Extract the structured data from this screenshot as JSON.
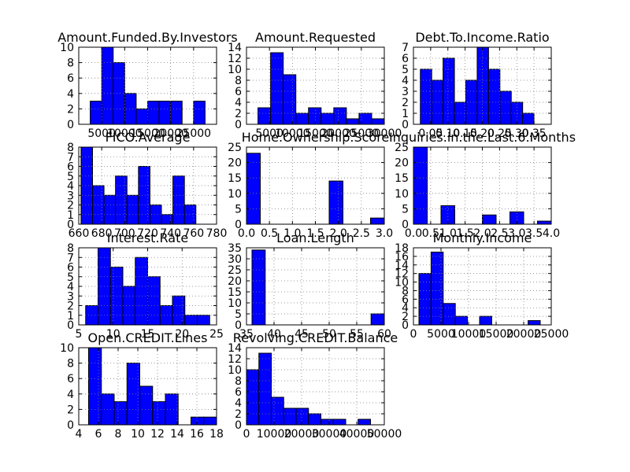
{
  "chart_data": [
    {
      "type": "bar",
      "title": "Amount.Funded.By.Investors",
      "bin_edges": [
        2500,
        5000,
        7500,
        10000,
        12500,
        15000,
        17500,
        20000,
        22500,
        25000,
        27500
      ],
      "values": [
        3,
        10,
        8,
        4,
        2,
        3,
        3,
        3,
        0,
        3
      ],
      "xlim": [
        0,
        30000
      ],
      "ylim": [
        0,
        10
      ],
      "xticks": [
        5000,
        10000,
        15000,
        20000,
        25000
      ],
      "xtick_labels": [
        "5000",
        "10000",
        "15000",
        "20000",
        "25000"
      ],
      "yticks": [
        0,
        2,
        4,
        6,
        8,
        10
      ],
      "ytick_labels": [
        "0",
        "2",
        "4",
        "6",
        "8",
        "10"
      ],
      "grid": true
    },
    {
      "type": "bar",
      "title": "Amount.Requested",
      "bin_edges": [
        2500,
        5250,
        8000,
        10750,
        13500,
        16250,
        19000,
        21750,
        24500,
        27250,
        30000
      ],
      "values": [
        3,
        13,
        9,
        2,
        3,
        2,
        3,
        1,
        2,
        1
      ],
      "xlim": [
        0,
        30000
      ],
      "ylim": [
        0,
        14
      ],
      "xticks": [
        5000,
        10000,
        15000,
        20000,
        25000,
        30000
      ],
      "xtick_labels": [
        "5000",
        "10000",
        "15000",
        "20000",
        "25000",
        "30000"
      ],
      "yticks": [
        0,
        2,
        4,
        6,
        8,
        10,
        12,
        14
      ],
      "ytick_labels": [
        "0",
        "2",
        "4",
        "6",
        "8",
        "10",
        "12",
        "14"
      ],
      "grid": true
    },
    {
      "type": "bar",
      "title": "Debt.To.Income.Ratio",
      "bin_edges": [
        0.02,
        0.053,
        0.086,
        0.119,
        0.152,
        0.185,
        0.218,
        0.251,
        0.284,
        0.317,
        0.35
      ],
      "values": [
        5,
        4,
        6,
        2,
        4,
        7,
        5,
        3,
        2,
        1
      ],
      "xlim": [
        0.0,
        0.4
      ],
      "ylim": [
        0,
        7
      ],
      "xticks": [
        0.05,
        0.1,
        0.15,
        0.2,
        0.25,
        0.3,
        0.35
      ],
      "xtick_labels": [
        "0.05",
        "0.10",
        "0.15",
        "0.20",
        "0.25",
        "0.30",
        "0.35"
      ],
      "yticks": [
        0,
        1,
        2,
        3,
        4,
        5,
        6,
        7
      ],
      "ytick_labels": [
        "0",
        "1",
        "2",
        "3",
        "4",
        "5",
        "6",
        "7"
      ],
      "grid": true
    },
    {
      "type": "bar",
      "title": "FICO.Average",
      "bin_edges": [
        662,
        672,
        682,
        692,
        702,
        712,
        722,
        732,
        742,
        752,
        762
      ],
      "values": [
        8,
        4,
        3,
        5,
        3,
        6,
        2,
        1,
        5,
        2
      ],
      "xlim": [
        660,
        780
      ],
      "ylim": [
        0,
        8
      ],
      "xticks": [
        660,
        680,
        700,
        720,
        740,
        760,
        780
      ],
      "xtick_labels": [
        "660",
        "680",
        "700",
        "720",
        "740",
        "760",
        "780"
      ],
      "yticks": [
        0,
        1,
        2,
        3,
        4,
        5,
        6,
        7,
        8
      ],
      "ytick_labels": [
        "0",
        "1",
        "2",
        "3",
        "4",
        "5",
        "6",
        "7",
        "8"
      ],
      "grid": true
    },
    {
      "type": "bar",
      "title": "Home.Ownership.Score",
      "bin_edges": [
        0.0,
        0.3,
        0.6,
        0.9,
        1.2,
        1.5,
        1.8,
        2.1,
        2.4,
        2.7,
        3.0
      ],
      "values": [
        23,
        0,
        0,
        0,
        0,
        0,
        14,
        0,
        0,
        2
      ],
      "xlim": [
        0.0,
        3.0
      ],
      "ylim": [
        0,
        25
      ],
      "xticks": [
        0.0,
        0.5,
        1.0,
        1.5,
        2.0,
        2.5,
        3.0
      ],
      "xtick_labels": [
        "0.0",
        "0.5",
        "1.0",
        "1.5",
        "2.0",
        "2.5",
        "3.0"
      ],
      "yticks": [
        0,
        5,
        10,
        15,
        20,
        25
      ],
      "ytick_labels": [
        "0",
        "5",
        "10",
        "15",
        "20",
        "25"
      ],
      "grid": true
    },
    {
      "type": "bar",
      "title": "Inquiries.in.the.Last.6.Months",
      "bin_edges": [
        0.0,
        0.4,
        0.8,
        1.2,
        1.6,
        2.0,
        2.4,
        2.8,
        3.2,
        3.6,
        4.0
      ],
      "values": [
        25,
        0,
        6,
        0,
        0,
        3,
        0,
        4,
        0,
        1
      ],
      "xlim": [
        0.0,
        4.0
      ],
      "ylim": [
        0,
        25
      ],
      "xticks": [
        0.0,
        0.5,
        1.0,
        1.5,
        2.0,
        2.5,
        3.0,
        3.5,
        4.0
      ],
      "xtick_labels": [
        "0.0",
        "0.5",
        "1.0",
        "1.5",
        "2.0",
        "2.5",
        "3.0",
        "3.5",
        "4.0"
      ],
      "yticks": [
        0,
        5,
        10,
        15,
        20,
        25
      ],
      "ytick_labels": [
        "0",
        "5",
        "10",
        "15",
        "20",
        "25"
      ],
      "grid": true
    },
    {
      "type": "bar",
      "title": "Interest.Rate",
      "bin_edges": [
        6.0,
        7.8,
        9.6,
        11.4,
        13.2,
        15.0,
        16.8,
        18.6,
        20.4,
        22.2,
        24.0
      ],
      "values": [
        2,
        8,
        6,
        4,
        7,
        5,
        2,
        3,
        1,
        1
      ],
      "xlim": [
        5,
        25
      ],
      "ylim": [
        0,
        8
      ],
      "xticks": [
        5,
        10,
        15,
        20,
        25
      ],
      "xtick_labels": [
        "5",
        "10",
        "15",
        "20",
        "25"
      ],
      "yticks": [
        0,
        1,
        2,
        3,
        4,
        5,
        6,
        7,
        8
      ],
      "ytick_labels": [
        "0",
        "1",
        "2",
        "3",
        "4",
        "5",
        "6",
        "7",
        "8"
      ],
      "grid": true
    },
    {
      "type": "bar",
      "title": "Loan.Length",
      "bin_edges": [
        36.0,
        38.4,
        40.8,
        43.2,
        45.6,
        48.0,
        50.4,
        52.8,
        55.2,
        57.6,
        60.0
      ],
      "values": [
        34,
        0,
        0,
        0,
        0,
        0,
        0,
        0,
        0,
        5
      ],
      "xlim": [
        35,
        60
      ],
      "ylim": [
        0,
        35
      ],
      "xticks": [
        35,
        40,
        45,
        50,
        55,
        60
      ],
      "xtick_labels": [
        "35",
        "40",
        "45",
        "50",
        "55",
        "60"
      ],
      "yticks": [
        0,
        5,
        10,
        15,
        20,
        25,
        30,
        35
      ],
      "ytick_labels": [
        "0",
        "5",
        "10",
        "15",
        "20",
        "25",
        "30",
        "35"
      ],
      "grid": true
    },
    {
      "type": "bar",
      "title": "Monthly.Income",
      "bin_edges": [
        1000,
        3200,
        5400,
        7600,
        9800,
        12000,
        14200,
        16400,
        18600,
        20800,
        23000
      ],
      "values": [
        12,
        17,
        5,
        2,
        0,
        2,
        0,
        0,
        0,
        1
      ],
      "xlim": [
        0,
        25000
      ],
      "ylim": [
        0,
        18
      ],
      "xticks": [
        0,
        5000,
        10000,
        15000,
        20000,
        25000
      ],
      "xtick_labels": [
        "0",
        "5000",
        "10000",
        "15000",
        "20000",
        "25000"
      ],
      "yticks": [
        0,
        2,
        4,
        6,
        8,
        10,
        12,
        14,
        16,
        18
      ],
      "ytick_labels": [
        "0",
        "2",
        "4",
        "6",
        "8",
        "10",
        "12",
        "14",
        "16",
        "18"
      ],
      "grid": true
    },
    {
      "type": "bar",
      "title": "Open.CREDIT.Lines",
      "bin_edges": [
        5.0,
        6.3,
        7.6,
        8.9,
        10.2,
        11.5,
        12.8,
        14.1,
        15.4,
        16.7,
        18.0
      ],
      "values": [
        10,
        4,
        3,
        8,
        5,
        3,
        4,
        0,
        1,
        1
      ],
      "xlim": [
        4,
        18
      ],
      "ylim": [
        0,
        10
      ],
      "xticks": [
        4,
        6,
        8,
        10,
        12,
        14,
        16,
        18
      ],
      "xtick_labels": [
        "4",
        "6",
        "8",
        "10",
        "12",
        "14",
        "16",
        "18"
      ],
      "yticks": [
        0,
        2,
        4,
        6,
        8,
        10
      ],
      "ytick_labels": [
        "0",
        "2",
        "4",
        "6",
        "8",
        "10"
      ],
      "grid": true
    },
    {
      "type": "bar",
      "title": "Revolving.CREDIT.Balance",
      "bin_edges": [
        0,
        4500,
        9000,
        13500,
        18000,
        22500,
        27000,
        31500,
        36000,
        40500,
        45000
      ],
      "values": [
        10,
        13,
        5,
        3,
        3,
        2,
        1,
        1,
        0,
        1
      ],
      "xlim": [
        0,
        50000
      ],
      "ylim": [
        0,
        14
      ],
      "xticks": [
        0,
        10000,
        20000,
        30000,
        40000,
        50000
      ],
      "xtick_labels": [
        "0",
        "10000",
        "20000",
        "30000",
        "40000",
        "50000"
      ],
      "yticks": [
        0,
        2,
        4,
        6,
        8,
        10,
        12,
        14
      ],
      "ytick_labels": [
        "0",
        "2",
        "4",
        "6",
        "8",
        "10",
        "12",
        "14"
      ],
      "grid": true
    }
  ],
  "colors": {
    "bar_fill": "#0000ff",
    "bar_edge": "#000000",
    "grid": "#7f7f7f",
    "axes": "#000000"
  }
}
